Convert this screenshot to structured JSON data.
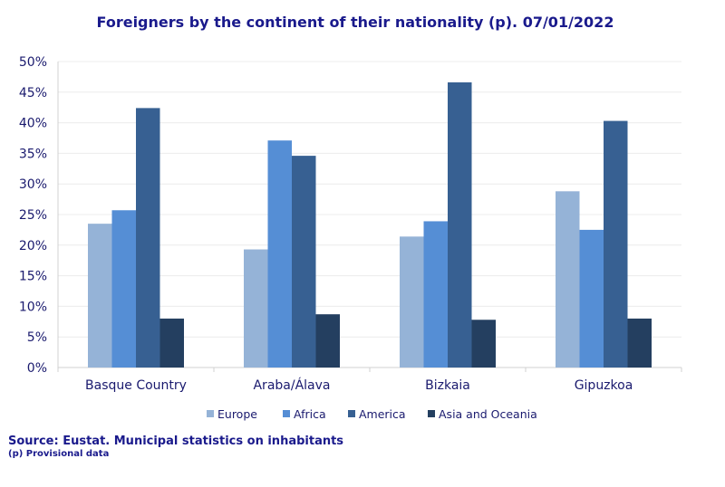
{
  "chart_data": {
    "type": "bar",
    "title": "Foreigners by the continent of their nationality (p). 07/01/2022",
    "categories": [
      "Basque Country",
      "Araba/Álava",
      "Bizkaia",
      "Gipuzkoa"
    ],
    "series": [
      {
        "name": "Europe",
        "color": "#95b3d7",
        "values": [
          23.5,
          19.3,
          21.4,
          28.8
        ]
      },
      {
        "name": "Africa",
        "color": "#558ed5",
        "values": [
          25.7,
          37.1,
          23.9,
          22.5
        ]
      },
      {
        "name": "America",
        "color": "#376092",
        "values": [
          42.4,
          34.6,
          46.6,
          40.3
        ]
      },
      {
        "name": "Asia and Oceania",
        "color": "#243f60",
        "values": [
          8.0,
          8.7,
          7.8,
          8.0
        ]
      }
    ],
    "ylim": [
      0,
      50
    ],
    "yticks": [
      0,
      5,
      10,
      15,
      20,
      25,
      30,
      35,
      40,
      45,
      50
    ],
    "ytick_labels": [
      "0%",
      "5%",
      "10%",
      "15%",
      "20%",
      "25%",
      "30%",
      "35%",
      "40%",
      "45%",
      "50%"
    ],
    "xlabel": "",
    "ylabel": "",
    "grid": true,
    "legend": "bottom"
  },
  "footer": {
    "source": "Source: Eustat. Municipal statistics on inhabitants",
    "note": "(p) Provisional data"
  }
}
